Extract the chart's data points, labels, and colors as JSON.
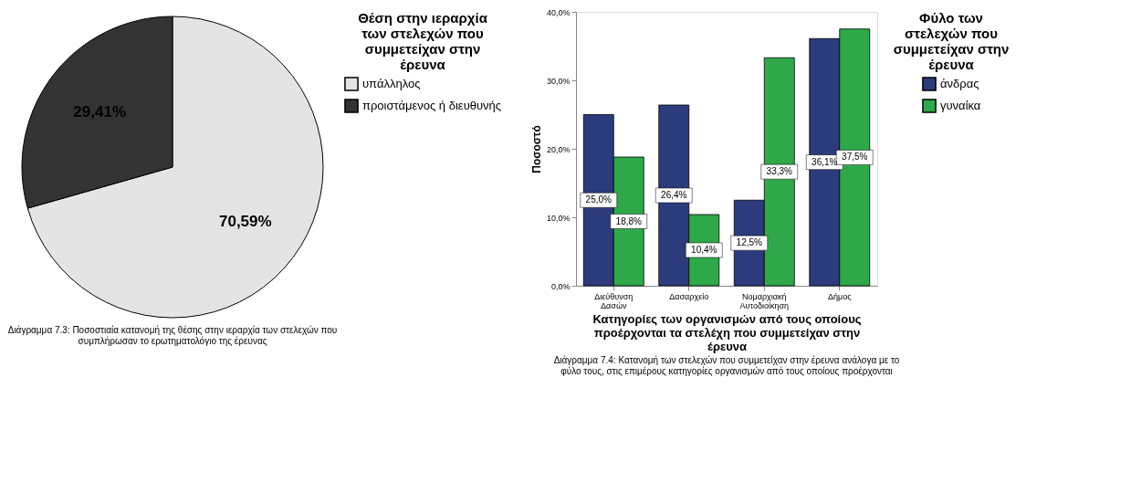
{
  "chart_data": [
    {
      "type": "pie",
      "categories": [
        "υπάλληλος",
        "προιστάμενος ή διευθυνής"
      ],
      "values": [
        70.59,
        29.41
      ],
      "colors": [
        "#e4e4e4",
        "#333333"
      ],
      "value_labels": [
        "70,59%",
        "29,41%"
      ],
      "legend_title": "Θέση στην ιεραρχία των στελεχών που συμμετείχαν στην έρευνα",
      "legend": "right",
      "annotations": [
        "Διάγραμμα 7.3: Ποσοστιαία κατανομή της θέσης στην ιεραρχία των στελεχών που συμπλήρωσαν το ερωτηματολόγιο της έρευνας"
      ]
    },
    {
      "type": "bar",
      "categories": [
        "Διεύθυνση Δασών",
        "Δασαρχείο",
        "Νομαρχιακή Αυτοδιοίκηση",
        "Δήμος"
      ],
      "series": [
        {
          "name": "άνδρας",
          "color": "#2b3b7c",
          "values": [
            25.0,
            26.4,
            12.5,
            36.1
          ],
          "value_labels": [
            "25,0%",
            "26,4%",
            "12,5%",
            "36,1%"
          ]
        },
        {
          "name": "γυναίκα",
          "color": "#2fa84a",
          "values": [
            18.8,
            10.4,
            33.3,
            37.5
          ],
          "value_labels": [
            "18,8%",
            "10,4%",
            "33,3%",
            "37,5%"
          ]
        }
      ],
      "ylim": [
        0,
        40
      ],
      "yticks": [
        {
          "value": 0,
          "label": "0,0%"
        },
        {
          "value": 10,
          "label": "10,0%"
        },
        {
          "value": 20,
          "label": "20,0%"
        },
        {
          "value": 30,
          "label": "30,0%"
        },
        {
          "value": 40,
          "label": "40,0%"
        }
      ],
      "ylabel": "Ποσοστό",
      "xlabel": "Κατηγορίες των οργανισμών από τους οποίους προέρχονται τα στελέχη που συμμετείχαν στην έρευνα",
      "legend_title": "Φύλο των στελεχών που συμμετείχαν στην έρευνα",
      "legend": "right",
      "grid": false,
      "annotations": [
        "Διάγραμμα 7.4: Κατανομή των στελεχών που συμμετείχαν στην έρευνα ανάλογα με το φύλο τους, στις επιμέρους κατηγορίες οργανισμών από τους οποίους προέρχονται"
      ]
    }
  ]
}
